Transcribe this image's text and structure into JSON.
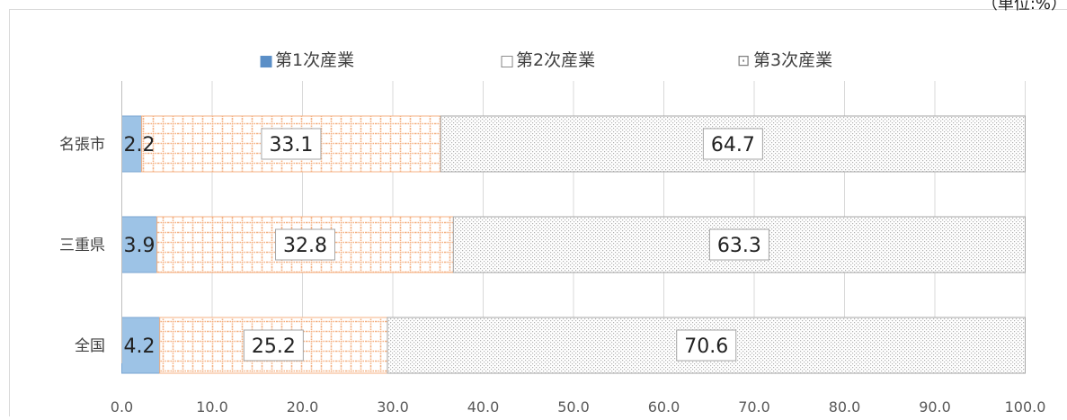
{
  "unit_note": "（単位:%）",
  "chart_data": {
    "type": "bar",
    "orientation": "horizontal",
    "stacked": true,
    "categories": [
      "名張市",
      "三重県",
      "全国"
    ],
    "series": [
      {
        "name": "第1次産業",
        "values": [
          2.2,
          3.9,
          4.2
        ],
        "color": "#9dc3e6",
        "border": "#7aa6d2",
        "pattern": "solid",
        "legend_icon": "■"
      },
      {
        "name": "第2次産業",
        "values": [
          33.1,
          32.8,
          25.2
        ],
        "color": "#f4b183",
        "border": "#f4b183",
        "pattern": "grid",
        "legend_icon": "□"
      },
      {
        "name": "第3次産業",
        "values": [
          64.7,
          63.3,
          70.6
        ],
        "color": "#bfbfbf",
        "border": "#a6a6a6",
        "pattern": "dots",
        "legend_icon": "⊡"
      }
    ],
    "xlim": [
      0,
      100
    ],
    "xticks": [
      "0.0",
      "10.0",
      "20.0",
      "30.0",
      "40.0",
      "50.0",
      "60.0",
      "70.0",
      "80.0",
      "90.0",
      "100.0"
    ],
    "grid": true,
    "legend_position": "top"
  }
}
